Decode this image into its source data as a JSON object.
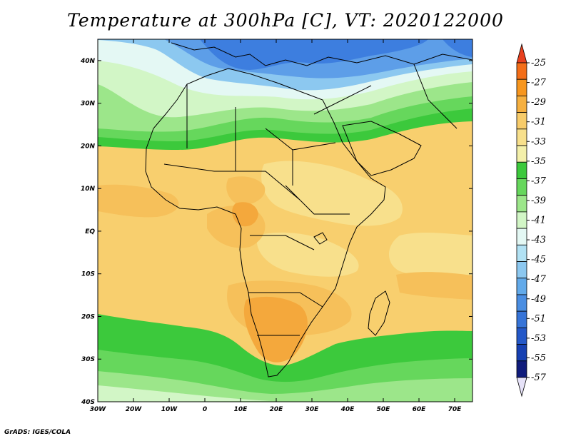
{
  "title": "Temperature at 300hPa [C], VT: 2020122000",
  "footer": "GrADS: IGES/COLA",
  "map": {
    "lon_range": [
      -30,
      75
    ],
    "lat_range": [
      -40,
      45
    ],
    "lon_ticks": [
      {
        "value": -30,
        "label": "30W"
      },
      {
        "value": -20,
        "label": "20W"
      },
      {
        "value": -10,
        "label": "10W"
      },
      {
        "value": 0,
        "label": "0"
      },
      {
        "value": 10,
        "label": "10E"
      },
      {
        "value": 20,
        "label": "20E"
      },
      {
        "value": 30,
        "label": "30E"
      },
      {
        "value": 40,
        "label": "40E"
      },
      {
        "value": 50,
        "label": "50E"
      },
      {
        "value": 60,
        "label": "60E"
      },
      {
        "value": 70,
        "label": "70E"
      }
    ],
    "lat_ticks": [
      {
        "value": 40,
        "label": "40N"
      },
      {
        "value": 30,
        "label": "30N"
      },
      {
        "value": 20,
        "label": "20N"
      },
      {
        "value": 10,
        "label": "10N"
      },
      {
        "value": 0,
        "label": "EQ"
      },
      {
        "value": -10,
        "label": "10S"
      },
      {
        "value": -20,
        "label": "20S"
      },
      {
        "value": -30,
        "label": "30S"
      },
      {
        "value": -40,
        "label": "40S"
      }
    ]
  },
  "colorbar": {
    "labels": [
      "-25",
      "-27",
      "-29",
      "-31",
      "-33",
      "-35",
      "-37",
      "-39",
      "-41",
      "-43",
      "-45",
      "-47",
      "-49",
      "-51",
      "-53",
      "-55",
      "-57"
    ],
    "colors": [
      "#e8401e",
      "#f46e18",
      "#f7961e",
      "#f6b040",
      "#f8cc6a",
      "#f8e08c",
      "#f4f0aa",
      "#3cc93c",
      "#66d75c",
      "#9ce68a",
      "#d2f6c6",
      "#e4f8f4",
      "#b2e2f4",
      "#8cc8f0",
      "#62aaea",
      "#4a8ee2",
      "#3674d8",
      "#2458c8",
      "#1640b2",
      "#101c7c",
      "#e6e2f8"
    ]
  },
  "field_bands": [
    {
      "name": "polar-cold",
      "color": "#3d7edf"
    },
    {
      "name": "cold",
      "color": "#5d9ee8"
    },
    {
      "name": "cool",
      "color": "#8cc8f0"
    },
    {
      "name": "mild-cool",
      "color": "#cdeef6"
    },
    {
      "name": "pale",
      "color": "#d2f6c6"
    },
    {
      "name": "light-green",
      "color": "#9ce68a"
    },
    {
      "name": "green",
      "color": "#66d75c"
    },
    {
      "name": "deep-green",
      "color": "#3cc93c"
    },
    {
      "name": "cream",
      "color": "#f8e08c"
    },
    {
      "name": "warm",
      "color": "#f6c05a"
    },
    {
      "name": "hot",
      "color": "#f4a83c"
    }
  ]
}
